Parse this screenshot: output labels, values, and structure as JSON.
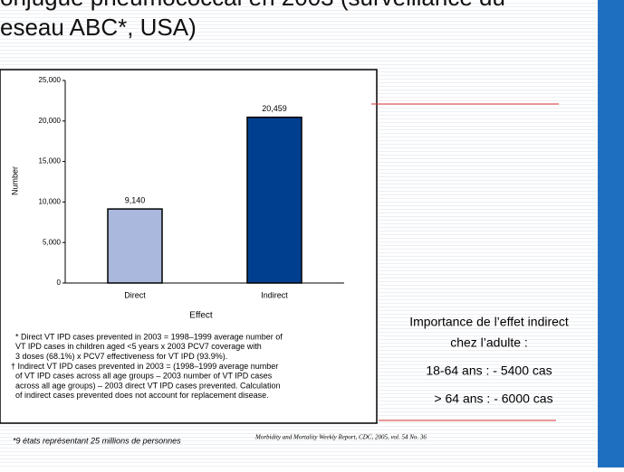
{
  "slide": {
    "title_lines": [
      "onjugué pneumococcal en 2003 (surveillance du",
      "eseau ABC*, USA)"
    ],
    "footnotes": [
      "* Direct VT IPD cases prevented in 2003 = 1998–1999 average number of",
      "VT IPD cases in children aged <5 years x 2003 PCV7 coverage with",
      "3 doses (68.1%) x PCV7 effectiveness for VT IPD (93.9%).",
      "† Indirect VT IPD cases prevented in 2003 = (1998–1999 average number",
      "of VT IPD cases across all age groups – 2003 number of VT IPD cases",
      "across all age groups) – 2003 direct VT IPD cases prevented. Calculation",
      "of indirect cases prevented does not account for replacement disease."
    ],
    "note": "*9 états représentant  25 millions de personnes",
    "citation": "Morbidity and Mortality Weekly Report, CDC, 2005, vol. 54 No. 36",
    "side_text": [
      "Importance de l’effet indirect",
      "chez l’adulte :",
      "18-64 ans : - 5400 cas",
      "> 64 ans : - 6000 cas"
    ]
  },
  "chart_data": {
    "type": "bar",
    "x_label": "Effect",
    "y_label": "Number",
    "categories": [
      "Direct",
      "Indirect"
    ],
    "values": [
      9140,
      20459
    ],
    "value_labels": [
      "9,140",
      "20,459"
    ],
    "colors": [
      "#a9b8dc",
      "#003f8f"
    ],
    "ylim": [
      0,
      25000
    ],
    "yticks": [
      0,
      {
        "value": 5000,
        "label": "5,000"
      },
      {
        "value": 10000,
        "label": "10,000"
      },
      {
        "value": 15000,
        "label": "15,000"
      },
      {
        "value": 20000,
        "label": "20,000"
      },
      {
        "value": 25000,
        "label": "25,000"
      }
    ]
  }
}
